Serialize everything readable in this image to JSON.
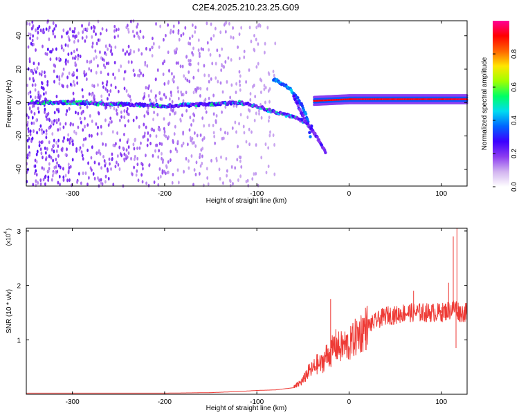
{
  "title": "C2E4.2025.210.23.25.G09",
  "chart_data": [
    {
      "type": "heatmap",
      "xlabel": "Height of straight line (km)",
      "ylabel": "Frequency (Hz)",
      "xlim": [
        -350,
        128
      ],
      "ylim": [
        -50,
        49
      ],
      "x_ticks": [
        -300,
        -200,
        -100,
        0,
        100
      ],
      "x_tick_labels": [
        "-300",
        "-200",
        "-100",
        "0",
        "100"
      ],
      "y_ticks": [
        -40,
        -20,
        0,
        20,
        40
      ],
      "y_tick_labels": [
        "-40",
        "-20",
        "0",
        "20",
        "40"
      ],
      "colorbar": {
        "label": "Normalized spectral amplitude",
        "range": [
          0,
          1
        ],
        "ticks": [
          0.0,
          0.2,
          0.4,
          0.6,
          0.8
        ],
        "tick_labels": [
          "0.0",
          "0.2",
          "0.4",
          "0.6",
          "0.8"
        ],
        "colormap": [
          "#ffffff",
          "#d2b4f0",
          "#8c3cf0",
          "#3c00ff",
          "#0064ff",
          "#00dcf0",
          "#00ff64",
          "#a0ff00",
          "#ffe600",
          "#ff6400",
          "#ff0000",
          "#ff0096"
        ]
      },
      "ridge": {
        "note_x": [
          -350,
          -300,
          -250,
          -200,
          -150,
          -120,
          -100,
          -90,
          -80,
          -70,
          -60,
          -50,
          -45,
          -40
        ],
        "frequency": [
          0,
          0,
          -1,
          -2,
          -1,
          0,
          -2,
          -4,
          -6,
          -7,
          -9,
          -11,
          -13,
          -14
        ]
      },
      "branch_upper": {
        "x": [
          -82,
          -75,
          -68,
          -62,
          -56,
          -50,
          -45,
          -42
        ],
        "frequency": [
          14,
          12,
          10,
          7,
          3,
          -3,
          -10,
          -20
        ]
      },
      "branch_lower": {
        "x": [
          -60,
          -52,
          -45,
          -38,
          -30,
          -25
        ],
        "frequency": [
          4,
          -6,
          -13,
          -18,
          -25,
          -30
        ]
      },
      "carrier": {
        "x": [
          -38,
          0,
          40,
          80,
          110,
          128
        ],
        "frequency": [
          1,
          2,
          2,
          2,
          2,
          2
        ],
        "amplitude": 0.95
      }
    },
    {
      "type": "line",
      "xlabel": "Height of straight line (km)",
      "ylabel": "SNR (10 * v/v)",
      "y_scale_label": "(x10",
      "y_scale_exp": "4",
      "y_scale_close": ")",
      "xlim": [
        -350,
        128
      ],
      "ylim": [
        0,
        3.05
      ],
      "x_ticks": [
        -300,
        -200,
        -100,
        0,
        100
      ],
      "x_tick_labels": [
        "-300",
        "-200",
        "-100",
        "0",
        "100"
      ],
      "y_ticks": [
        1,
        2,
        3
      ],
      "y_tick_labels": [
        "1",
        "2",
        "3"
      ],
      "color": "#ee3a35",
      "series": [
        {
          "x": [
            -350,
            -300,
            -250,
            -200,
            -150,
            -120,
            -100,
            -80,
            -60,
            -50,
            -45,
            -40,
            -35,
            -30,
            -25,
            -20,
            -15,
            -10,
            -5,
            0,
            5,
            10,
            20,
            30,
            40,
            50,
            60,
            70,
            80,
            90,
            100,
            110,
            115,
            120,
            128
          ],
          "values": [
            0.02,
            0.02,
            0.02,
            0.02,
            0.03,
            0.05,
            0.07,
            0.08,
            0.12,
            0.25,
            0.4,
            0.45,
            0.55,
            0.55,
            0.7,
            0.75,
            0.9,
            0.85,
            0.9,
            0.9,
            1.0,
            1.1,
            1.25,
            1.35,
            1.45,
            1.45,
            1.5,
            1.5,
            1.5,
            1.5,
            1.5,
            1.55,
            1.6,
            1.5,
            1.5
          ]
        }
      ],
      "spikes": [
        {
          "x": -20,
          "values": 1.75
        },
        {
          "x": 70,
          "values": 1.9
        },
        {
          "x": 100,
          "values": 1.6
        },
        {
          "x": 108,
          "values": 2.05
        },
        {
          "x": 113,
          "values": 2.9
        },
        {
          "x": 117,
          "values": 3.05
        },
        {
          "x": 116,
          "values": 0.85
        }
      ]
    }
  ]
}
